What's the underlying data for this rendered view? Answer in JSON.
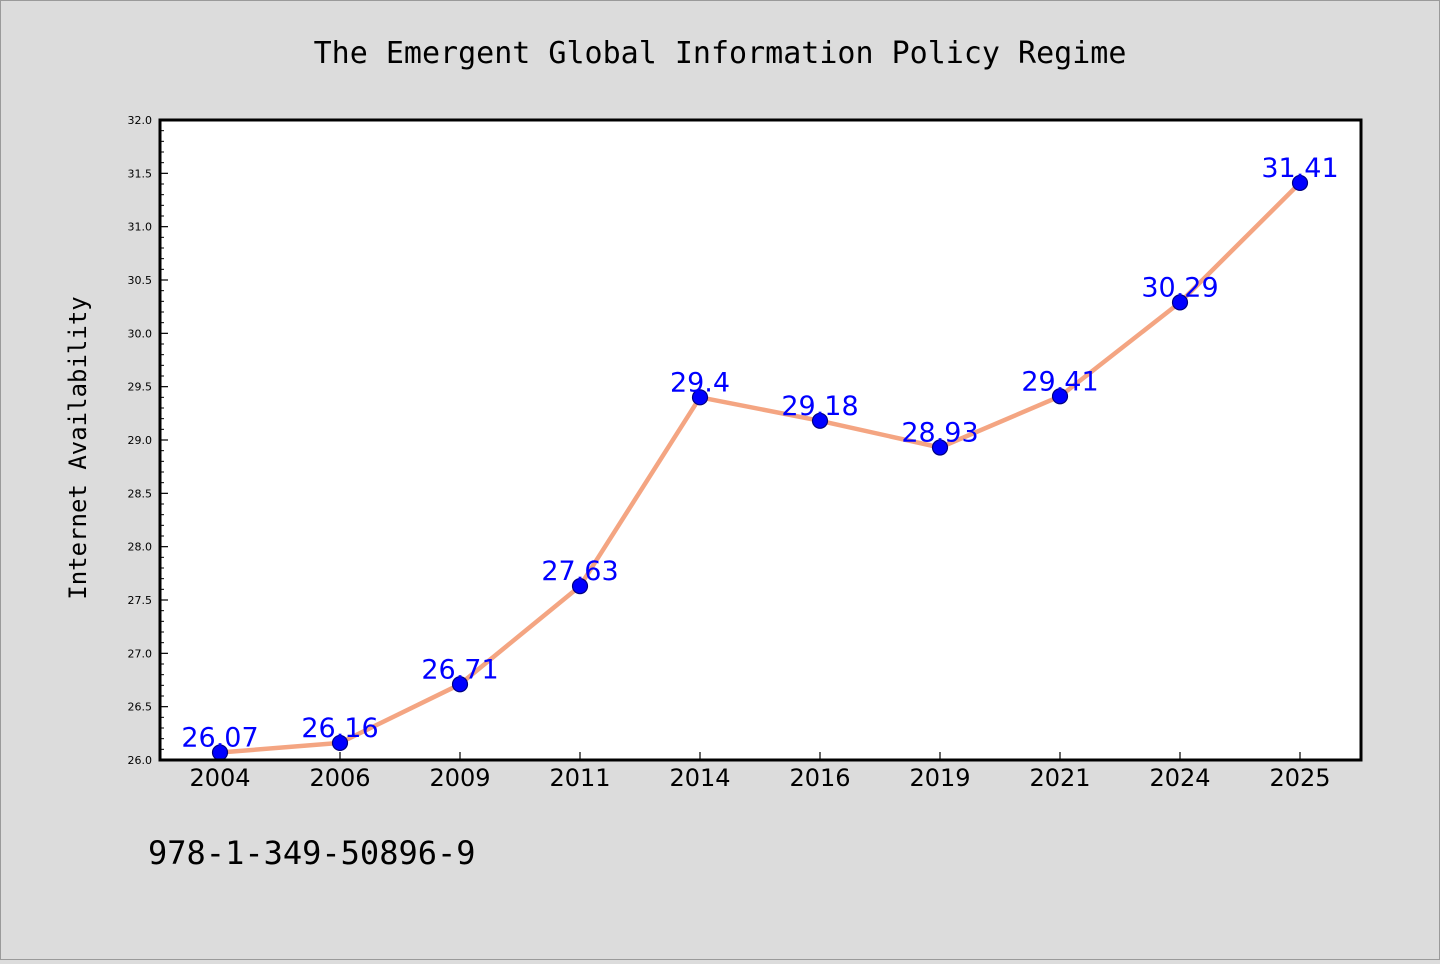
{
  "chart_data": {
    "type": "line",
    "title": "The Emergent Global Information Policy Regime",
    "ylabel": "Internet Availability",
    "xlabel": "",
    "categories": [
      "2004",
      "2006",
      "2009",
      "2011",
      "2014",
      "2016",
      "2019",
      "2021",
      "2024",
      "2025"
    ],
    "series": [
      {
        "values": [
          26.07,
          26.16,
          26.71,
          27.63,
          29.4,
          29.18,
          28.93,
          29.41,
          30.29,
          31.41
        ],
        "data_labels": [
          "26.07",
          "26.16",
          "26.71",
          "27.63",
          "29.4",
          "29.18",
          "28.93",
          "29.41",
          "30.29",
          "31.41"
        ]
      }
    ],
    "ylim": [
      26.0,
      32.0
    ],
    "y_ticks": [
      "26.0",
      "26.5",
      "27.0",
      "27.5",
      "28.0",
      "28.5",
      "29.0",
      "29.5",
      "30.0",
      "30.5",
      "31.0",
      "31.5",
      "32.0"
    ],
    "grid": false,
    "colors": {
      "line": "#f4a582",
      "marker": "#0000ff",
      "marker_edge": "#000080",
      "data_label": "#0000ff",
      "plot_background": "#ffffff",
      "figure_background": "#dcdcdc"
    }
  },
  "footnote": "978-1-349-50896-9"
}
